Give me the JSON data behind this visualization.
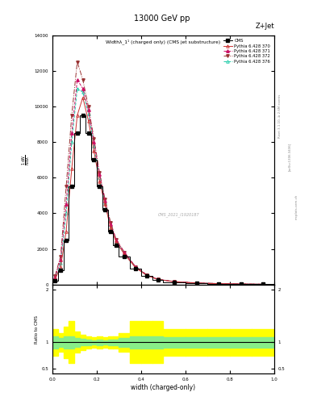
{
  "title": "13000 GeV pp",
  "title_right": "Z+Jet",
  "plot_title": "Widthλ_1¹ (charged only) (CMS jet substructure)",
  "xlabel": "width (charged-only)",
  "ylabel_ratio": "Ratio to CMS",
  "watermark": "CMS_2021_I1920187",
  "rivet_text": "Rivet 3.1.10, ≥ 2.6M events",
  "arxiv_text": "[arXiv:1306.3436]",
  "mcplots_text": "mcplots.cern.ch",
  "cms_color": "#000000",
  "line_colors": {
    "370": "#cc3333",
    "371": "#cc1166",
    "372": "#993333",
    "376": "#22ccaa"
  },
  "x_bins": [
    0.0,
    0.025,
    0.05,
    0.075,
    0.1,
    0.125,
    0.15,
    0.175,
    0.2,
    0.225,
    0.25,
    0.275,
    0.3,
    0.35,
    0.4,
    0.45,
    0.5,
    0.6,
    0.7,
    0.8,
    0.9,
    1.0
  ],
  "cms_values": [
    200,
    800,
    2500,
    5500,
    8500,
    9500,
    8500,
    7000,
    5500,
    4200,
    3000,
    2200,
    1600,
    900,
    500,
    280,
    150,
    80,
    50,
    30,
    20
  ],
  "p370_values": [
    300,
    1000,
    3000,
    6500,
    9500,
    10500,
    9200,
    7500,
    5800,
    4500,
    3200,
    2400,
    1700,
    950,
    520,
    290,
    160,
    90,
    55,
    35,
    22
  ],
  "p371_values": [
    400,
    1400,
    4500,
    8500,
    11500,
    11000,
    9800,
    8000,
    6200,
    4700,
    3400,
    2500,
    1800,
    1000,
    550,
    300,
    170,
    95,
    60,
    38,
    25
  ],
  "p372_values": [
    500,
    1600,
    5500,
    9500,
    12500,
    11500,
    10000,
    8200,
    6300,
    4800,
    3500,
    2550,
    1820,
    1010,
    560,
    305,
    172,
    97,
    61,
    39,
    26
  ],
  "p376_values": [
    350,
    1200,
    4000,
    8000,
    11000,
    10800,
    9600,
    7800,
    6000,
    4600,
    3350,
    2450,
    1750,
    980,
    540,
    295,
    165,
    92,
    58,
    36,
    24
  ],
  "ratio_yellow_lo": [
    0.75,
    0.82,
    0.7,
    0.6,
    0.8,
    0.85,
    0.88,
    0.9,
    0.88,
    0.9,
    0.88,
    0.88,
    0.82,
    0.6,
    0.6,
    0.6,
    0.75,
    0.75,
    0.75,
    0.75,
    0.75
  ],
  "ratio_yellow_hi": [
    1.25,
    1.18,
    1.3,
    1.4,
    1.2,
    1.15,
    1.12,
    1.1,
    1.12,
    1.1,
    1.12,
    1.12,
    1.18,
    1.4,
    1.4,
    1.4,
    1.25,
    1.25,
    1.25,
    1.25,
    1.25
  ],
  "ratio_green_lo": [
    0.88,
    0.92,
    0.88,
    0.88,
    0.92,
    0.94,
    0.95,
    0.96,
    0.95,
    0.96,
    0.95,
    0.95,
    0.92,
    0.88,
    0.88,
    0.88,
    0.9,
    0.9,
    0.9,
    0.9,
    0.9
  ],
  "ratio_green_hi": [
    1.12,
    1.08,
    1.12,
    1.12,
    1.08,
    1.06,
    1.05,
    1.04,
    1.05,
    1.04,
    1.05,
    1.05,
    1.08,
    1.12,
    1.12,
    1.12,
    1.1,
    1.1,
    1.1,
    1.1,
    1.1
  ],
  "ylim_main": [
    0,
    14000
  ],
  "yticks_main": [
    0,
    2000,
    4000,
    6000,
    8000,
    10000,
    12000,
    14000
  ],
  "ylim_ratio": [
    0.4,
    2.1
  ],
  "yticks_ratio": [
    0.5,
    1.0,
    2.0
  ],
  "xlim": [
    0.0,
    1.0
  ]
}
